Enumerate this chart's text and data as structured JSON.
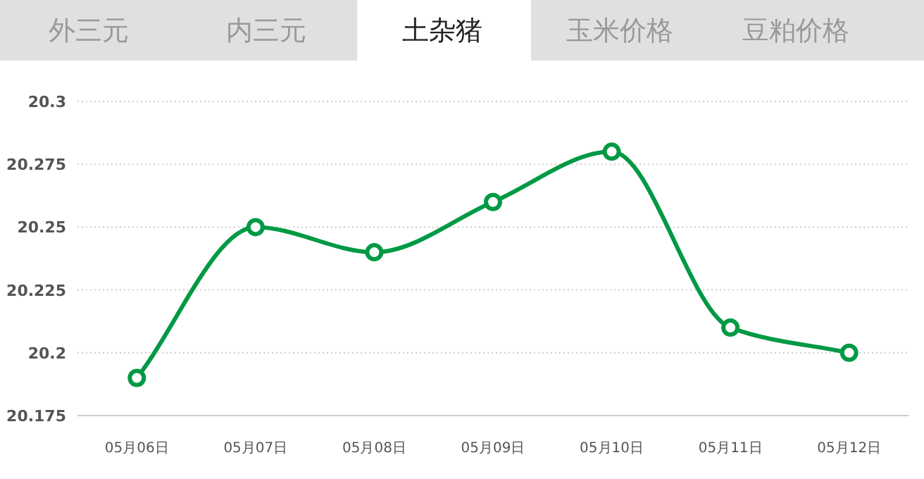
{
  "chart_data": {
    "type": "line",
    "title": "土杂猪",
    "annotations": [
      "外三元",
      "内三元",
      "玉米价格",
      "豆粕价格"
    ],
    "categories": [
      "05月06日",
      "05月07日",
      "05月08日",
      "05月09日",
      "05月10日",
      "05月11日",
      "05月12日"
    ],
    "values": [
      20.19,
      20.25,
      20.24,
      20.26,
      20.28,
      20.21,
      20.2
    ],
    "color": "#009944",
    "ylim": [
      20.175,
      20.3
    ],
    "yticks": [
      20.175,
      20.2,
      20.225,
      20.25,
      20.275,
      20.3
    ],
    "grid": "y",
    "marker": "circle"
  }
}
